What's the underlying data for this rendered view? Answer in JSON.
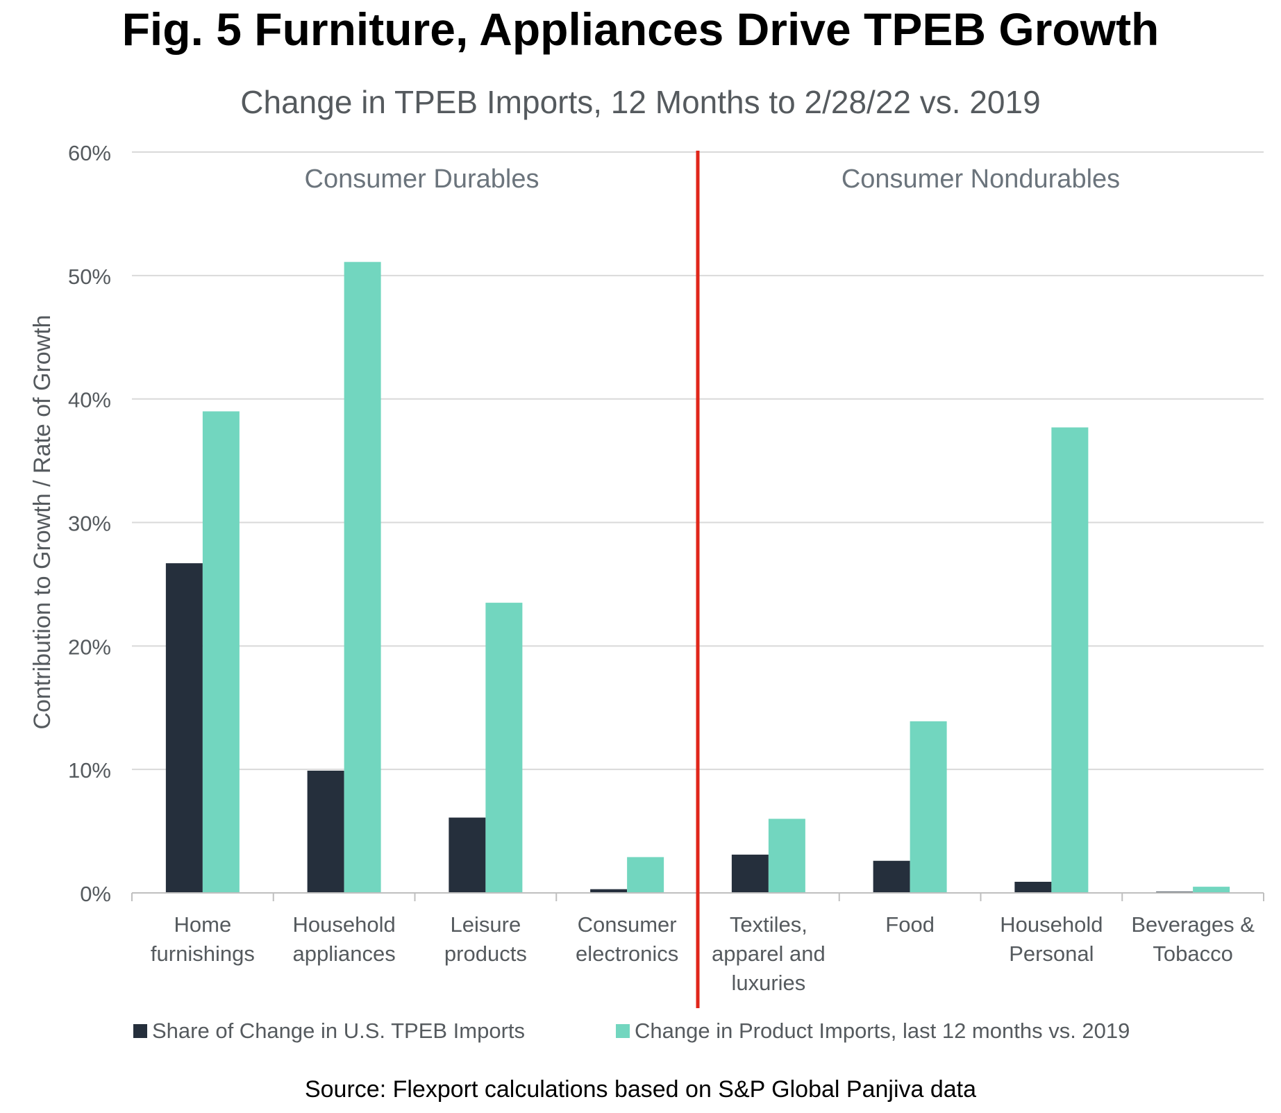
{
  "chart_data": {
    "type": "bar",
    "title": "Fig. 5 Furniture, Appliances Drive TPEB Growth",
    "subtitle": "Change in TPEB Imports, 12 Months to 2/28/22 vs. 2019",
    "ylabel": "Contribution to Growth / Rate of Growth",
    "xlabel": "",
    "ylim": [
      0,
      60
    ],
    "yticks": [
      0,
      10,
      20,
      30,
      40,
      50,
      60
    ],
    "ytick_labels": [
      "0%",
      "10%",
      "20%",
      "30%",
      "40%",
      "50%",
      "60%"
    ],
    "grid": true,
    "categories": [
      [
        "Home",
        "furnishings"
      ],
      [
        "Household",
        "appliances"
      ],
      [
        "Leisure",
        "products"
      ],
      [
        "Consumer",
        "electronics"
      ],
      [
        "Textiles,",
        "apparel and",
        "luxuries"
      ],
      [
        "Food"
      ],
      [
        "Household",
        "Personal"
      ],
      [
        "Beverages &",
        "Tobacco"
      ]
    ],
    "series": [
      {
        "name": "Share of Change in U.S. TPEB Imports",
        "color": "#252f3c",
        "values": [
          26.7,
          9.9,
          6.1,
          0.3,
          3.1,
          2.6,
          0.9,
          0.1
        ]
      },
      {
        "name": "Change in Product Imports, last 12 months vs. 2019",
        "color": "#72d6bf",
        "values": [
          39.0,
          51.1,
          23.5,
          2.9,
          6.0,
          13.9,
          37.7,
          0.5
        ]
      }
    ],
    "groups": [
      {
        "label": "Consumer Durables"
      },
      {
        "label": "Consumer Nondurables"
      }
    ],
    "divider": {
      "after_category_index": 3,
      "color": "#e0261a"
    },
    "legend_position": "bottom"
  },
  "source": "Source: Flexport calculations based on S&P Global Panjiva data"
}
